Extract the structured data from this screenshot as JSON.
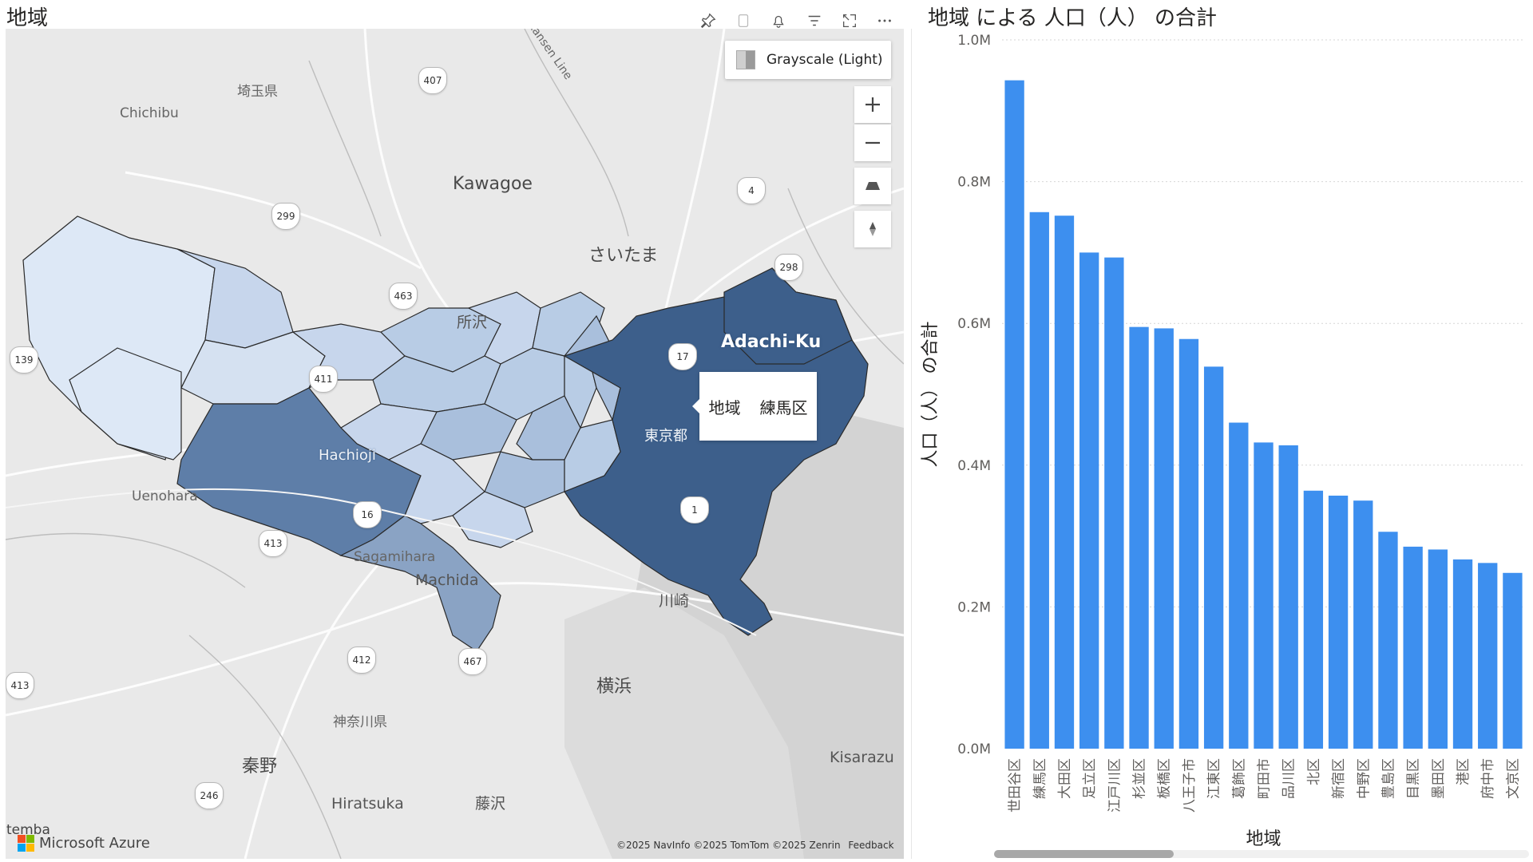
{
  "map": {
    "title": "地域",
    "header_icons": [
      "pin-icon",
      "copy-icon",
      "bell-icon",
      "filter-icon",
      "focus-mode-icon",
      "more-options-icon"
    ],
    "style_picker_label": "Grayscale (Light)",
    "controls": [
      "zoom-in-icon",
      "zoom-out-icon",
      "pitch-icon",
      "compass-icon"
    ],
    "tooltip": {
      "field": "地域",
      "value": "練馬区"
    },
    "labels": {
      "saitama_pref": "埼玉県",
      "chichibu": "Chichibu",
      "kawagoe": "Kawagoe",
      "saitama": "さいたま",
      "tokorozawa": "所沢",
      "adachi": "Adachi-Ku",
      "tokyo": "東京都",
      "hachioji": "Hachioji",
      "uenohara": "Uenohara",
      "sagamihara": "Sagamihara",
      "machida": "Machida",
      "kawasaki": "川崎",
      "yokohama": "横浜",
      "kanagawa": "神奈川県",
      "hadano": "秦野",
      "hiratsuka": "Hiratsuka",
      "fujisawa": "藤沢",
      "kisarazu": "Kisarazu",
      "rail": "kansen Line",
      "temba": "temba"
    },
    "shields": [
      "407",
      "299",
      "463",
      "139",
      "411",
      "16",
      "413",
      "412",
      "467",
      "413",
      "246",
      "17",
      "1",
      "4",
      "298"
    ],
    "attribution": "Microsoft Azure",
    "copyright": "©2025 NavInfo ©2025 TomTom ©2025 Zenrin",
    "feedback": "Feedback",
    "shade_colors": {
      "lightest": "#dde8f6",
      "light": "#c7d6ec",
      "mid": "#8aa3c4",
      "dark": "#5e7ea8",
      "darkest": "#3d5f8b"
    }
  },
  "chart_data": {
    "type": "bar",
    "title": "地域 による 人口（人） の合計",
    "xlabel": "地域",
    "ylabel": "人口（人） の合計",
    "ylim": [
      0,
      1000000
    ],
    "yticks": [
      "0.0M",
      "0.2M",
      "0.4M",
      "0.6M",
      "0.8M",
      "1.0M"
    ],
    "bar_color": "#3d8fef",
    "grid": true,
    "categories": [
      "世田谷区",
      "練馬区",
      "大田区",
      "足立区",
      "江戸川区",
      "杉並区",
      "板橋区",
      "八王子市",
      "江東区",
      "葛飾区",
      "町田市",
      "品川区",
      "北区",
      "新宿区",
      "中野区",
      "豊島区",
      "目黒区",
      "墨田区",
      "港区",
      "府中市",
      "文京区"
    ],
    "values": [
      943000,
      757000,
      752000,
      700000,
      693000,
      595000,
      593000,
      578000,
      539000,
      460000,
      432000,
      428000,
      364000,
      357000,
      350000,
      306000,
      285000,
      281000,
      267000,
      262000,
      248000
    ]
  }
}
